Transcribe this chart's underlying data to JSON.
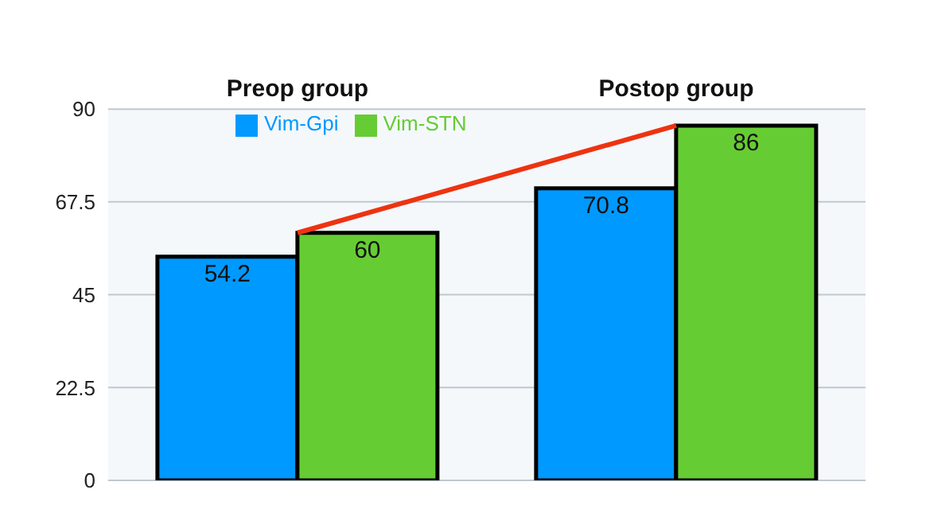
{
  "chart_data": {
    "type": "bar",
    "categories": [
      "Preop group",
      "Postop group"
    ],
    "series": [
      {
        "name": "Vim-Gpi",
        "color": "#0099ff",
        "values": [
          54.2,
          70.8
        ],
        "value_labels": [
          "54.2",
          "70.8"
        ]
      },
      {
        "name": "Vim-STN",
        "color": "#66cc33",
        "values": [
          60,
          86
        ],
        "value_labels": [
          "60",
          "86"
        ]
      },
      {
        "type": "line",
        "color": "#ee3311",
        "values": [
          60,
          86
        ]
      }
    ],
    "ylim": [
      0,
      90
    ],
    "yticks": [
      0,
      22.5,
      45,
      67.5,
      90
    ],
    "grid": "y",
    "legend": "top left"
  }
}
